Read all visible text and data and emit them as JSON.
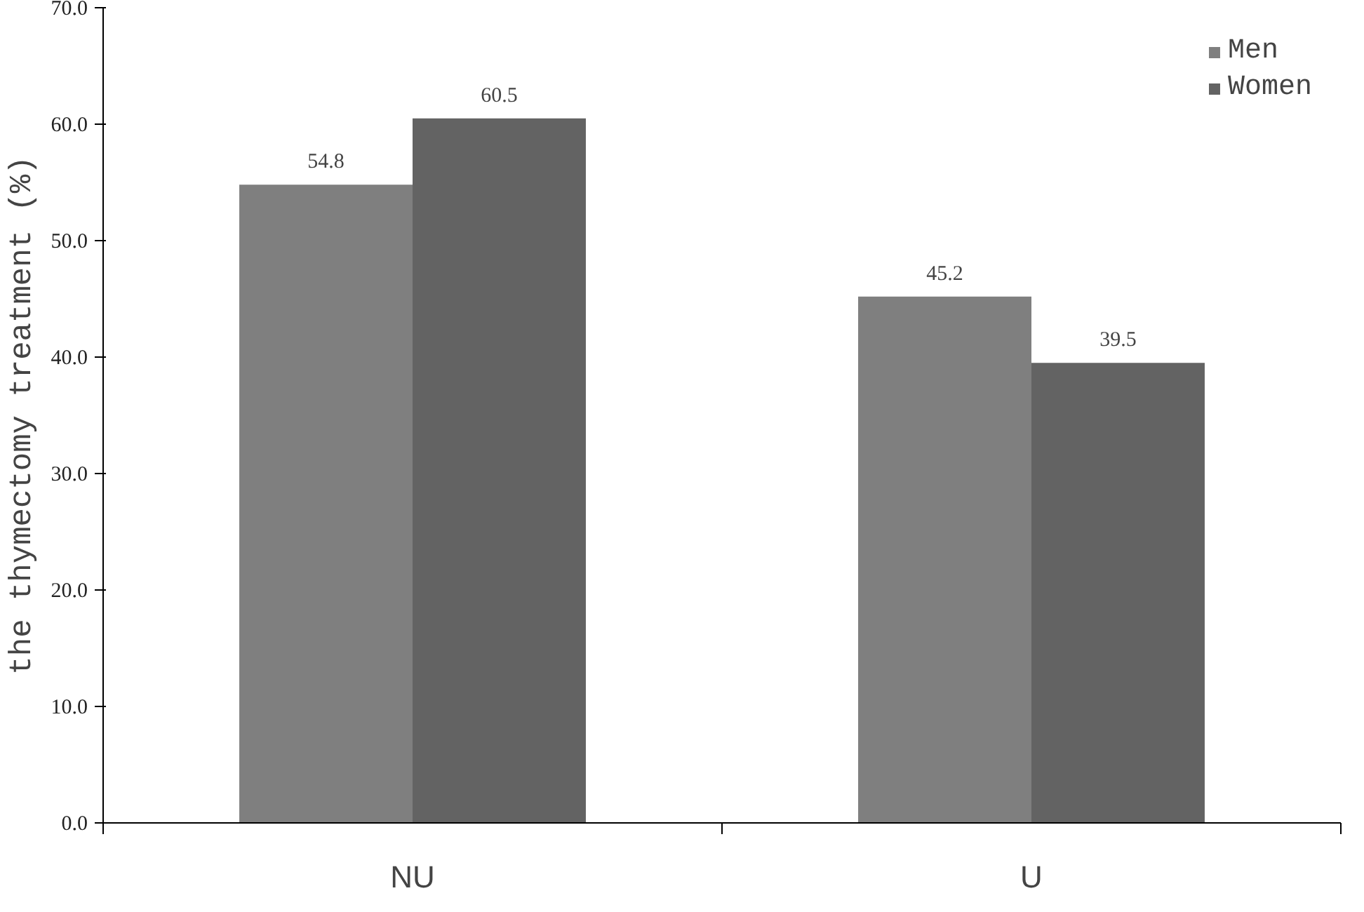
{
  "chart_data": {
    "type": "bar",
    "ylabel": "the thymectomy treatment (%)",
    "categories": [
      "NU",
      "U"
    ],
    "series": [
      {
        "name": "Men",
        "color": "#7f7f7f",
        "values": [
          54.8,
          45.2
        ]
      },
      {
        "name": "Women",
        "color": "#636363",
        "values": [
          60.5,
          39.5
        ]
      }
    ],
    "ylim": [
      0,
      70
    ],
    "yticks": [
      {
        "value": 0,
        "label": "0.0"
      },
      {
        "value": 10,
        "label": "10.0"
      },
      {
        "value": 20,
        "label": "20.0"
      },
      {
        "value": 30,
        "label": "30.0"
      },
      {
        "value": 40,
        "label": "40.0"
      },
      {
        "value": 50,
        "label": "50.0"
      },
      {
        "value": 60,
        "label": "60.0"
      },
      {
        "value": 70,
        "label": "70.0"
      }
    ],
    "data_labels": true,
    "legend": "top right",
    "grid": false
  }
}
